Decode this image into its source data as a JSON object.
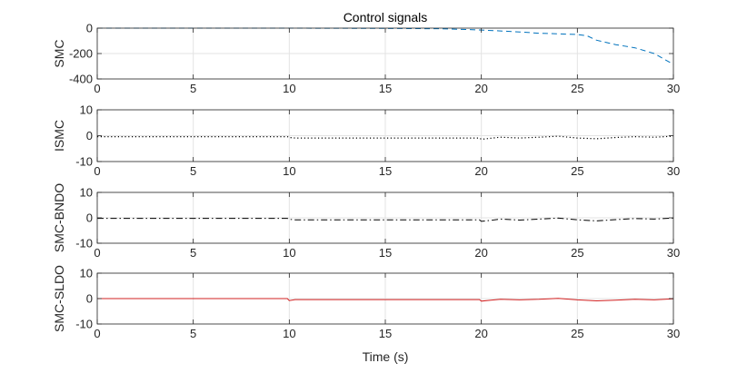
{
  "chart_data": {
    "type": "line",
    "title": "Control signals",
    "xlabel": "Time (s)",
    "xlim": [
      0,
      30
    ],
    "xticks": [
      0,
      5,
      10,
      15,
      20,
      25,
      30
    ],
    "grid": true,
    "subplots": [
      {
        "ylabel": "SMC",
        "ylim": [
          -400,
          0
        ],
        "yticks": [
          0,
          -200,
          -400
        ],
        "series": [
          {
            "style": "dashed",
            "color": "#0072BD",
            "x": [
              0,
              5,
              10,
              15,
              18,
              20,
              21,
              22,
              23,
              24,
              25,
              25.5,
              26,
              27,
              28,
              29,
              30
            ],
            "y": [
              0,
              0,
              0,
              -2,
              -5,
              -15,
              -22,
              -30,
              -40,
              -45,
              -50,
              -60,
              -95,
              -130,
              -155,
              -200,
              -285
            ]
          }
        ]
      },
      {
        "ylabel": "ISMC",
        "ylim": [
          -10,
          10
        ],
        "yticks": [
          10,
          0,
          -10
        ],
        "series": [
          {
            "style": "dotted",
            "color": "#000000",
            "x": [
              0,
              9.9,
              10,
              10.3,
              15,
              19.9,
              20,
              20.5,
              21,
              22,
              23,
              24,
              25,
              26,
              27,
              28,
              29,
              30
            ],
            "y": [
              -0.4,
              -0.4,
              -0.7,
              -0.9,
              -0.9,
              -0.9,
              -1.4,
              -1.0,
              -0.6,
              -0.9,
              -0.6,
              -0.2,
              -0.9,
              -1.2,
              -0.7,
              -0.4,
              -0.6,
              -0.2
            ]
          }
        ]
      },
      {
        "ylabel": "SMC-BNDO",
        "ylim": [
          -10,
          10
        ],
        "yticks": [
          10,
          0,
          -10
        ],
        "series": [
          {
            "style": "dashdot",
            "color": "#000000",
            "x": [
              0,
              9.9,
              10,
              10.3,
              15,
              19.9,
              20,
              20.5,
              21,
              22,
              23,
              24,
              25,
              26,
              27,
              28,
              29,
              30
            ],
            "y": [
              -0.2,
              -0.2,
              -0.6,
              -0.8,
              -0.8,
              -0.8,
              -1.4,
              -1.0,
              -0.5,
              -0.9,
              -0.5,
              -0.1,
              -0.8,
              -1.2,
              -0.7,
              -0.3,
              -0.5,
              -0.1
            ]
          }
        ]
      },
      {
        "ylabel": "SMC-SLDO",
        "ylim": [
          -10,
          10
        ],
        "yticks": [
          10,
          0,
          -10
        ],
        "series": [
          {
            "style": "solid",
            "color": "#D22020",
            "x": [
              0,
              9.9,
              10,
              10.3,
              15,
              19.9,
              20,
              20.5,
              21,
              22,
              23,
              24,
              25,
              26,
              27,
              28,
              29,
              30
            ],
            "y": [
              0,
              0,
              -0.8,
              -0.4,
              -0.4,
              -0.4,
              -1.0,
              -0.6,
              -0.3,
              -0.5,
              -0.3,
              0.1,
              -0.5,
              -0.9,
              -0.6,
              -0.3,
              -0.5,
              -0.1
            ]
          }
        ]
      }
    ]
  }
}
